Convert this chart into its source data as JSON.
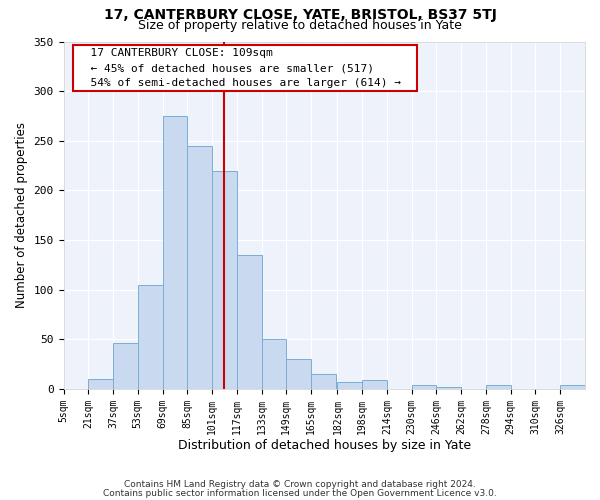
{
  "title": "17, CANTERBURY CLOSE, YATE, BRISTOL, BS37 5TJ",
  "subtitle": "Size of property relative to detached houses in Yate",
  "xlabel": "Distribution of detached houses by size in Yate",
  "ylabel": "Number of detached properties",
  "footer_line1": "Contains HM Land Registry data © Crown copyright and database right 2024.",
  "footer_line2": "Contains public sector information licensed under the Open Government Licence v3.0.",
  "annotation_line1": "17 CANTERBURY CLOSE: 109sqm",
  "annotation_line2": "← 45% of detached houses are smaller (517)",
  "annotation_line3": "54% of semi-detached houses are larger (614) →",
  "property_size": 109,
  "bar_color": "#c8d9f0",
  "bar_edge_color": "#7aaed6",
  "vline_color": "#cc0000",
  "background_color": "#eef2fb",
  "grid_color": "#ffffff",
  "categories": [
    "5sqm",
    "21sqm",
    "37sqm",
    "53sqm",
    "69sqm",
    "85sqm",
    "101sqm",
    "117sqm",
    "133sqm",
    "149sqm",
    "165sqm",
    "182sqm",
    "198sqm",
    "214sqm",
    "230sqm",
    "246sqm",
    "262sqm",
    "278sqm",
    "294sqm",
    "310sqm",
    "326sqm"
  ],
  "bar_heights": [
    0,
    10,
    46,
    105,
    275,
    245,
    220,
    135,
    50,
    30,
    15,
    7,
    9,
    0,
    4,
    2,
    0,
    4,
    0,
    0,
    4
  ],
  "bin_edges": [
    5,
    21,
    37,
    53,
    69,
    85,
    101,
    117,
    133,
    149,
    165,
    182,
    198,
    214,
    230,
    246,
    262,
    278,
    294,
    310,
    326,
    342
  ],
  "ylim": [
    0,
    350
  ],
  "yticks": [
    0,
    50,
    100,
    150,
    200,
    250,
    300,
    350
  ],
  "figsize": [
    6.0,
    5.0
  ],
  "dpi": 100
}
